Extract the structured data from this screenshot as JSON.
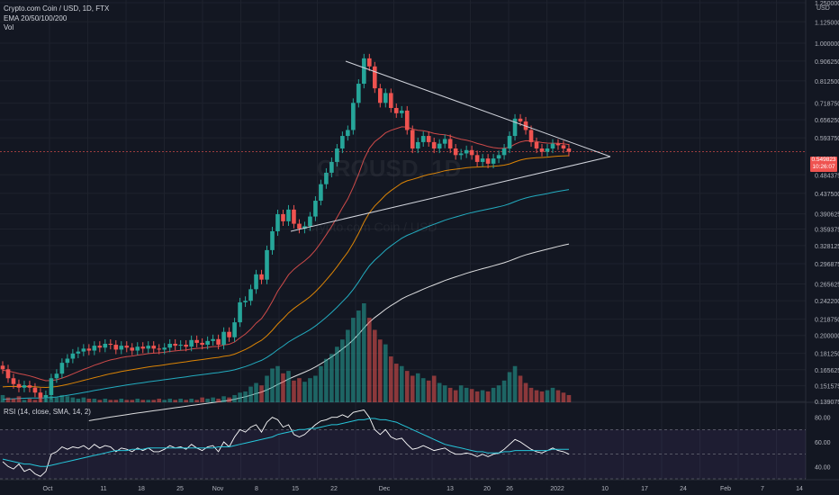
{
  "header": {
    "title": "Crypto.com Coin / USD, 1D, FTX",
    "indicators": "EMA 20/50/100/200",
    "volume": "Vol",
    "rsi": "RSI (14, close, SMA, 14, 2)"
  },
  "currency": "USD",
  "last_price": "0.549823",
  "countdown": "10:26:07",
  "watermark": {
    "symbol": "CROUSD, 1D",
    "name": "Crypto.com Coin / USD"
  },
  "colors": {
    "background": "#131722",
    "up": "#26a69a",
    "down": "#ef5350",
    "ema20": "#ef5350",
    "ema50": "#ff9800",
    "ema100": "#26c6da",
    "ema200": "#ffffff",
    "rsi": "#ffffff",
    "rsi_ma": "#26c6da",
    "trendline": "#d1d4dc"
  },
  "chart_data": [
    {
      "type": "candlestick",
      "title": "Crypto.com Coin / USD, 1D, FTX",
      "scale": "log",
      "y_ticks": [
        "1.250000",
        "1.125000",
        "1.000000",
        "0.906250",
        "0.812500",
        "0.718750",
        "0.656250",
        "0.593750",
        "0.484375",
        "0.437500",
        "0.390625",
        "0.359375",
        "0.328125",
        "0.296875",
        "0.265625",
        "0.242200",
        "0.218750",
        "0.200000",
        "0.181250",
        "0.165625",
        "0.151575",
        "0.139075"
      ],
      "x_ticks": [
        "Oct",
        "11",
        "18",
        "25",
        "Nov",
        "8",
        "15",
        "22",
        "Dec",
        "13",
        "20",
        "26",
        "2022",
        "10",
        "17",
        "24",
        "Feb",
        "7",
        "14"
      ],
      "last_price": 0.549823,
      "closes": [
        0.166,
        0.158,
        0.153,
        0.15,
        0.152,
        0.15,
        0.146,
        0.142,
        0.144,
        0.158,
        0.162,
        0.172,
        0.176,
        0.181,
        0.183,
        0.186,
        0.184,
        0.189,
        0.187,
        0.191,
        0.19,
        0.185,
        0.189,
        0.187,
        0.184,
        0.188,
        0.186,
        0.189,
        0.186,
        0.185,
        0.187,
        0.191,
        0.189,
        0.19,
        0.188,
        0.195,
        0.192,
        0.19,
        0.194,
        0.196,
        0.19,
        0.204,
        0.198,
        0.215,
        0.24,
        0.242,
        0.258,
        0.28,
        0.272,
        0.32,
        0.355,
        0.39,
        0.375,
        0.4,
        0.37,
        0.36,
        0.365,
        0.385,
        0.42,
        0.46,
        0.49,
        0.52,
        0.56,
        0.6,
        0.62,
        0.72,
        0.8,
        0.92,
        0.88,
        0.78,
        0.72,
        0.76,
        0.7,
        0.68,
        0.69,
        0.62,
        0.56,
        0.58,
        0.6,
        0.58,
        0.56,
        0.575,
        0.59,
        0.56,
        0.54,
        0.545,
        0.555,
        0.54,
        0.52,
        0.53,
        0.515,
        0.53,
        0.54,
        0.56,
        0.6,
        0.66,
        0.65,
        0.62,
        0.58,
        0.56,
        0.55,
        0.56,
        0.575,
        0.57,
        0.56,
        0.55
      ]
    },
    {
      "type": "bar",
      "title": "Vol",
      "values": [
        6,
        4,
        3,
        5,
        2,
        3,
        2,
        4,
        3,
        5,
        4,
        6,
        5,
        4,
        3,
        4,
        3,
        3,
        2,
        3,
        2,
        2,
        3,
        2,
        2,
        3,
        2,
        2,
        2,
        3,
        2,
        3,
        2,
        3,
        2,
        3,
        2,
        4,
        3,
        4,
        3,
        5,
        4,
        6,
        8,
        9,
        13,
        16,
        14,
        22,
        28,
        30,
        24,
        26,
        18,
        20,
        17,
        20,
        22,
        30,
        36,
        40,
        46,
        52,
        60,
        70,
        76,
        82,
        70,
        60,
        52,
        48,
        38,
        32,
        30,
        26,
        22,
        24,
        20,
        18,
        22,
        16,
        14,
        12,
        10,
        14,
        12,
        11,
        9,
        10,
        9,
        12,
        14,
        18,
        25,
        30,
        22,
        16,
        12,
        10,
        9,
        10,
        12,
        10,
        8,
        6
      ]
    },
    {
      "type": "line",
      "title": "RSI (14, close, SMA, 14, 2)",
      "y_ticks": [
        "80.00",
        "60.00",
        "40.00"
      ],
      "ylim": [
        30,
        90
      ],
      "series": [
        {
          "values": [
            44,
            40,
            38,
            42,
            36,
            38,
            34,
            32,
            36,
            50,
            52,
            56,
            54,
            56,
            55,
            57,
            54,
            58,
            55,
            57,
            56,
            52,
            55,
            54,
            52,
            55,
            53,
            55,
            52,
            52,
            54,
            57,
            55,
            56,
            54,
            58,
            55,
            53,
            56,
            57,
            52,
            60,
            56,
            64,
            70,
            68,
            72,
            74,
            68,
            76,
            80,
            78,
            72,
            74,
            66,
            64,
            66,
            70,
            74,
            77,
            78,
            80,
            80,
            82,
            80,
            84,
            85,
            86,
            80,
            70,
            66,
            70,
            64,
            62,
            63,
            58,
            54,
            55,
            57,
            55,
            53,
            54,
            55,
            52,
            50,
            50,
            51,
            50,
            48,
            50,
            48,
            50,
            51,
            54,
            58,
            62,
            60,
            57,
            54,
            52,
            51,
            53,
            55,
            53,
            52,
            50
          ]
        },
        {
          "values": [
            46,
            45,
            44,
            43,
            42,
            42,
            41,
            40,
            40,
            41,
            42,
            43,
            44,
            45,
            46,
            47,
            48,
            49,
            50,
            51,
            52,
            53,
            53,
            53,
            54,
            54,
            54,
            55,
            55,
            55,
            55,
            55,
            55,
            55,
            55,
            55,
            55,
            55,
            55,
            55,
            56,
            56,
            56,
            57,
            58,
            59,
            60,
            61,
            62,
            63,
            64,
            66,
            67,
            68,
            69,
            70,
            70,
            71,
            71,
            72,
            73,
            74,
            74,
            75,
            76,
            77,
            78,
            78,
            79,
            79,
            78,
            78,
            77,
            76,
            74,
            72,
            70,
            68,
            66,
            64,
            62,
            60,
            58,
            57,
            56,
            55,
            54,
            53,
            52,
            52,
            51,
            51,
            51,
            52,
            52,
            53,
            53,
            53,
            53,
            53,
            53,
            53,
            54,
            54,
            54,
            54
          ]
        }
      ]
    }
  ]
}
